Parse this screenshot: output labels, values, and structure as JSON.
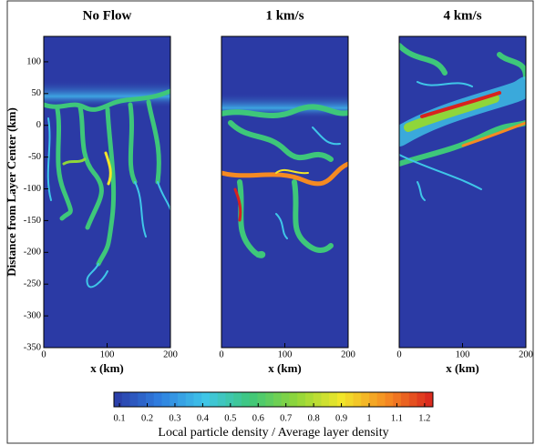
{
  "chart_data": [
    {
      "type": "field",
      "title": "No Flow",
      "xlabel": "x (km)",
      "ylabel": "Distance from Layer Center (km)",
      "xlim": [
        0,
        200
      ],
      "xticks": [
        0,
        100,
        200
      ],
      "ylim": [
        -350,
        140
      ],
      "yticks": [
        100,
        50,
        0,
        -50,
        -100,
        -150,
        -200,
        -250,
        -300,
        -350
      ]
    },
    {
      "type": "field",
      "title": "1 km/s",
      "xlabel": "x (km)",
      "xlim": [
        0,
        200
      ],
      "xticks": [
        0,
        100,
        200
      ]
    },
    {
      "type": "field",
      "title": "4 km/s",
      "xlabel": "x (km)",
      "xlim": [
        0,
        200
      ],
      "xticks": [
        0,
        100,
        200
      ]
    },
    {
      "type": "colorbar",
      "label": "Local particle density / Average layer density",
      "lim": [
        0.08,
        1.23
      ],
      "ticks": [
        0.1,
        0.2,
        0.3,
        0.4,
        0.5,
        0.6,
        0.7,
        0.8,
        0.9,
        1,
        1.1,
        1.2
      ],
      "colors": [
        "#2b3aa5",
        "#2f7fe0",
        "#3fc6e8",
        "#3ec77a",
        "#8fd63a",
        "#f2e62a",
        "#f58a22",
        "#d8221e"
      ]
    }
  ]
}
